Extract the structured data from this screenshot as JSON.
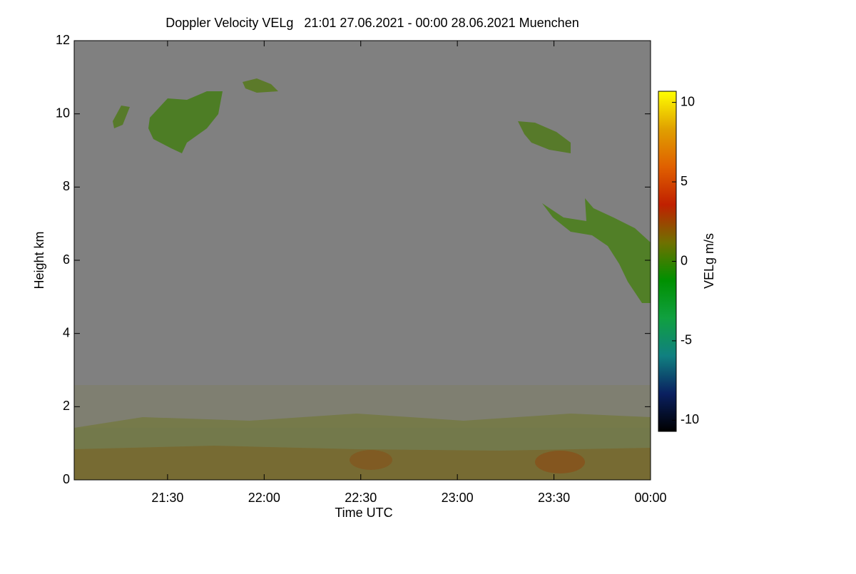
{
  "chart_data": {
    "type": "heatmap",
    "title": "Doppler Velocity VELg   21:01 27.06.2021 - 00:00 28.06.2021 Muenchen",
    "x_label": "Time UTC",
    "y_label": "Height km",
    "xlim": [
      21.0167,
      24
    ],
    "xticks": [
      {
        "value": 21.5,
        "label": "21:30"
      },
      {
        "value": 22,
        "label": "22:00"
      },
      {
        "value": 22.5,
        "label": "22:30"
      },
      {
        "value": 23,
        "label": "23:00"
      },
      {
        "value": 23.5,
        "label": "23:30"
      },
      {
        "value": 24,
        "label": "00:00"
      }
    ],
    "ylim": [
      0,
      12
    ],
    "yticks": [
      0,
      2,
      4,
      6,
      8,
      10,
      12
    ],
    "background": "#808080",
    "colorbar": {
      "label": "VELg m/s",
      "lim": [
        -10.7,
        10.7
      ],
      "ticks": [
        -10,
        -5,
        0,
        5,
        10
      ],
      "colors": [
        "#000000",
        "#0a2060",
        "#108080",
        "#10a040",
        "#009000",
        "#707000",
        "#c02000",
        "#e06000",
        "#e0a000",
        "#ffff00"
      ]
    }
  }
}
